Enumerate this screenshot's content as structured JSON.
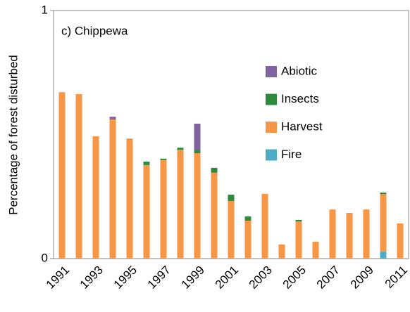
{
  "chart_data": {
    "type": "stacked_bar",
    "title": "c) Chippewa",
    "y_label": "Percentage of forest disturbed",
    "categories": [
      "1991",
      null,
      "1993",
      null,
      "1995",
      null,
      "1997",
      null,
      "1999",
      null,
      "2001",
      null,
      "2003",
      null,
      "2005",
      null,
      "2007",
      null,
      "2009",
      null,
      "2011"
    ],
    "series": [
      {
        "name": "Fire",
        "color": "#4bacc6",
        "values": [
          0,
          0,
          0,
          0,
          0,
          0,
          0,
          0,
          0,
          0,
          0,
          0,
          0,
          0,
          0,
          0,
          0,
          0,
          0,
          0.028,
          0
        ]
      },
      {
        "name": "Harvest",
        "color": "#f79646",
        "values": [
          0.671,
          0.663,
          0.493,
          0.561,
          0.484,
          0.377,
          0.397,
          0.439,
          0.425,
          0.346,
          0.232,
          0.153,
          0.261,
          0.057,
          0.15,
          0.068,
          0.198,
          0.184,
          0.198,
          0.232,
          0.142
        ]
      },
      {
        "name": "Insects",
        "color": "#2e8b3e",
        "values": [
          0,
          0,
          0,
          0.003,
          0,
          0.014,
          0.006,
          0.008,
          0.014,
          0.02,
          0.026,
          0.017,
          0,
          0,
          0.006,
          0,
          0,
          0,
          0,
          0.006,
          0
        ]
      },
      {
        "name": "Abiotic",
        "color": "#8064a2",
        "values": [
          0,
          0,
          0,
          0.008,
          0,
          0,
          0,
          0,
          0.105,
          0,
          0,
          0,
          0,
          0,
          0,
          0,
          0,
          0,
          0,
          0,
          0
        ]
      }
    ],
    "ylim": [
      0,
      1
    ],
    "yticks": [
      0,
      1
    ]
  }
}
